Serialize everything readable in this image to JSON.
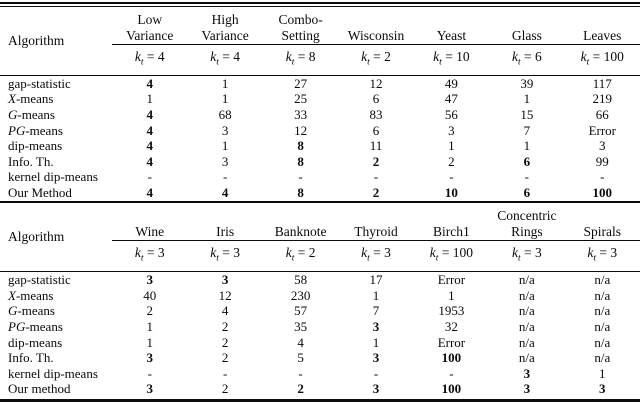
{
  "page": {
    "background_color": "#ffffff",
    "rule_color": "#0a0a0a",
    "text_color": "#0a0a0a"
  },
  "tables": [
    {
      "name": "benchmark-results-table-1",
      "algorithm_header": "Algorithm",
      "k_symbol": "k",
      "k_subscript": "t",
      "columns": [
        {
          "line1": "Low",
          "line2": "Variance",
          "k_value": "4"
        },
        {
          "line1": "High",
          "line2": "Variance",
          "k_value": "4"
        },
        {
          "line1": "Combo-",
          "line2": "Setting",
          "k_value": "8"
        },
        {
          "line1": "",
          "line2": "Wisconsin",
          "k_value": "2"
        },
        {
          "line1": "",
          "line2": "Yeast",
          "k_value": "10"
        },
        {
          "line1": "",
          "line2": "Glass",
          "k_value": "6"
        },
        {
          "line1": "",
          "line2": "Leaves",
          "k_value": "100"
        }
      ],
      "rows": [
        {
          "label": [
            {
              "t": "gap-statistic"
            }
          ],
          "values": [
            {
              "v": "4",
              "b": true
            },
            {
              "v": "1"
            },
            {
              "v": "27"
            },
            {
              "v": "12"
            },
            {
              "v": "49"
            },
            {
              "v": "39"
            },
            {
              "v": "117"
            }
          ]
        },
        {
          "label": [
            {
              "t": "X",
              "i": true
            },
            {
              "t": "-means"
            }
          ],
          "values": [
            {
              "v": "1"
            },
            {
              "v": "1"
            },
            {
              "v": "25"
            },
            {
              "v": "6"
            },
            {
              "v": "47"
            },
            {
              "v": "1"
            },
            {
              "v": "219"
            }
          ]
        },
        {
          "label": [
            {
              "t": "G",
              "i": true
            },
            {
              "t": "-means"
            }
          ],
          "values": [
            {
              "v": "4",
              "b": true
            },
            {
              "v": "68"
            },
            {
              "v": "33"
            },
            {
              "v": "83"
            },
            {
              "v": "56"
            },
            {
              "v": "15"
            },
            {
              "v": "66"
            }
          ]
        },
        {
          "label": [
            {
              "t": "PG",
              "i": true
            },
            {
              "t": "-means"
            }
          ],
          "values": [
            {
              "v": "4",
              "b": true
            },
            {
              "v": "3"
            },
            {
              "v": "12"
            },
            {
              "v": "6"
            },
            {
              "v": "3"
            },
            {
              "v": "7"
            },
            {
              "v": "Error"
            }
          ]
        },
        {
          "label": [
            {
              "t": "dip-means"
            }
          ],
          "values": [
            {
              "v": "4",
              "b": true
            },
            {
              "v": "1"
            },
            {
              "v": "8",
              "b": true
            },
            {
              "v": "11"
            },
            {
              "v": "1"
            },
            {
              "v": "1"
            },
            {
              "v": "3"
            }
          ]
        },
        {
          "label": [
            {
              "t": "Info. Th."
            }
          ],
          "values": [
            {
              "v": "4",
              "b": true
            },
            {
              "v": "3"
            },
            {
              "v": "8",
              "b": true
            },
            {
              "v": "2",
              "b": true
            },
            {
              "v": "2"
            },
            {
              "v": "6",
              "b": true
            },
            {
              "v": "99"
            }
          ]
        },
        {
          "label": [
            {
              "t": "kernel dip-means"
            }
          ],
          "values": [
            {
              "v": "-"
            },
            {
              "v": "-"
            },
            {
              "v": "-"
            },
            {
              "v": "-"
            },
            {
              "v": "-"
            },
            {
              "v": "-"
            },
            {
              "v": "-"
            }
          ]
        },
        {
          "label": [
            {
              "t": "Our Method"
            }
          ],
          "values": [
            {
              "v": "4",
              "b": true
            },
            {
              "v": "4",
              "b": true
            },
            {
              "v": "8",
              "b": true
            },
            {
              "v": "2",
              "b": true
            },
            {
              "v": "10",
              "b": true
            },
            {
              "v": "6",
              "b": true
            },
            {
              "v": "100",
              "b": true
            }
          ]
        }
      ]
    },
    {
      "name": "benchmark-results-table-2",
      "algorithm_header": "Algorithm",
      "k_symbol": "k",
      "k_subscript": "t",
      "columns": [
        {
          "line1": "",
          "line2": "Wine",
          "k_value": "3"
        },
        {
          "line1": "",
          "line2": "Iris",
          "k_value": "3"
        },
        {
          "line1": "",
          "line2": "Banknote",
          "k_value": "2"
        },
        {
          "line1": "",
          "line2": "Thyroid",
          "k_value": "3"
        },
        {
          "line1": "",
          "line2": "Birch1",
          "k_value": "100"
        },
        {
          "line1": "Concentric",
          "line2": "Rings",
          "k_value": "3"
        },
        {
          "line1": "",
          "line2": "Spirals",
          "k_value": "3"
        }
      ],
      "rows": [
        {
          "label": [
            {
              "t": "gap-statistic"
            }
          ],
          "values": [
            {
              "v": "3",
              "b": true
            },
            {
              "v": "3",
              "b": true
            },
            {
              "v": "58"
            },
            {
              "v": "17"
            },
            {
              "v": "Error"
            },
            {
              "v": "n/a"
            },
            {
              "v": "n/a"
            }
          ]
        },
        {
          "label": [
            {
              "t": "X",
              "i": true
            },
            {
              "t": "-means"
            }
          ],
          "values": [
            {
              "v": "40"
            },
            {
              "v": "12"
            },
            {
              "v": "230"
            },
            {
              "v": "1"
            },
            {
              "v": "1"
            },
            {
              "v": "n/a"
            },
            {
              "v": "n/a"
            }
          ]
        },
        {
          "label": [
            {
              "t": "G",
              "i": true
            },
            {
              "t": "-means"
            }
          ],
          "values": [
            {
              "v": "2"
            },
            {
              "v": "4"
            },
            {
              "v": "57"
            },
            {
              "v": "7"
            },
            {
              "v": "1953"
            },
            {
              "v": "n/a"
            },
            {
              "v": "n/a"
            }
          ]
        },
        {
          "label": [
            {
              "t": "PG",
              "i": true
            },
            {
              "t": "-means"
            }
          ],
          "values": [
            {
              "v": "1"
            },
            {
              "v": "2"
            },
            {
              "v": "35"
            },
            {
              "v": "3",
              "b": true
            },
            {
              "v": "32"
            },
            {
              "v": "n/a"
            },
            {
              "v": "n/a"
            }
          ]
        },
        {
          "label": [
            {
              "t": "dip-means"
            }
          ],
          "values": [
            {
              "v": "1"
            },
            {
              "v": "2"
            },
            {
              "v": "4"
            },
            {
              "v": "1"
            },
            {
              "v": "Error"
            },
            {
              "v": "n/a"
            },
            {
              "v": "n/a"
            }
          ]
        },
        {
          "label": [
            {
              "t": "Info. Th."
            }
          ],
          "values": [
            {
              "v": "3",
              "b": true
            },
            {
              "v": "2"
            },
            {
              "v": "5"
            },
            {
              "v": "3",
              "b": true
            },
            {
              "v": "100",
              "b": true
            },
            {
              "v": "n/a"
            },
            {
              "v": "n/a"
            }
          ]
        },
        {
          "label": [
            {
              "t": "kernel dip-means"
            }
          ],
          "values": [
            {
              "v": "-"
            },
            {
              "v": "-"
            },
            {
              "v": "-"
            },
            {
              "v": "-"
            },
            {
              "v": "-"
            },
            {
              "v": "3",
              "b": true
            },
            {
              "v": "1"
            }
          ]
        },
        {
          "label": [
            {
              "t": "Our method"
            }
          ],
          "values": [
            {
              "v": "3",
              "b": true
            },
            {
              "v": "2"
            },
            {
              "v": "2",
              "b": true
            },
            {
              "v": "3",
              "b": true
            },
            {
              "v": "100",
              "b": true
            },
            {
              "v": "3",
              "b": true
            },
            {
              "v": "3",
              "b": true
            }
          ]
        }
      ]
    }
  ]
}
